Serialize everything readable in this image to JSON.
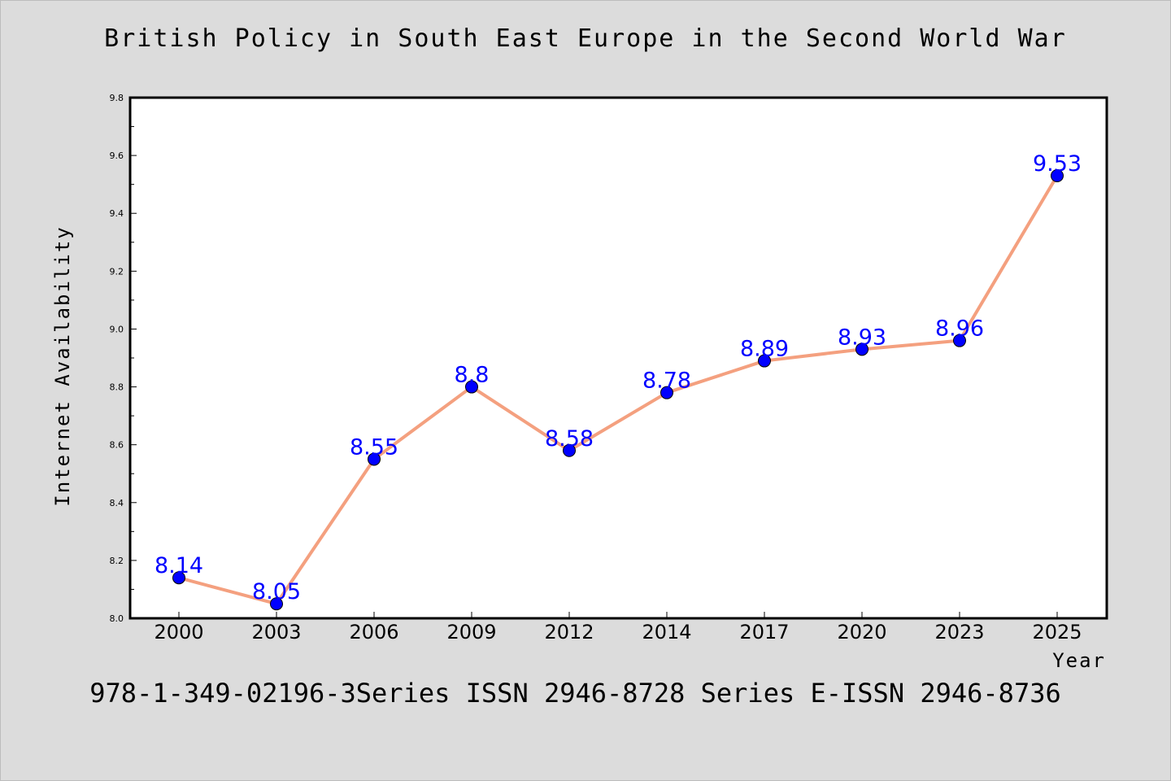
{
  "header": {
    "title": "British Policy in South East Europe in the Second World War"
  },
  "footer": {
    "text": "978-1-349-02196-3Series ISSN 2946-8728 Series E-ISSN 2946-8736"
  },
  "chart_data": {
    "type": "line",
    "title": "British Policy in South East Europe in the Second World War",
    "xlabel": "Year",
    "ylabel": "Internet Availability",
    "categories": [
      "2000",
      "2003",
      "2006",
      "2009",
      "2012",
      "2014",
      "2017",
      "2020",
      "2023",
      "2025"
    ],
    "series": [
      {
        "values": [
          8.14,
          8.05,
          8.55,
          8.8,
          8.58,
          8.78,
          8.89,
          8.93,
          8.96,
          9.53
        ],
        "data_labels": [
          "8.14",
          "8.05",
          "8.55",
          "8.8",
          "8.58",
          "8.78",
          "8.89",
          "8.93",
          "8.96",
          "9.53"
        ]
      }
    ],
    "ylim": [
      8.0,
      9.8
    ],
    "yticks": [
      "8.0",
      "8.2",
      "8.4",
      "8.6",
      "8.8",
      "9.0",
      "9.2",
      "9.4",
      "9.6",
      "9.8"
    ],
    "grid": false,
    "legend": "none",
    "colors": {
      "line": "#f4a07f",
      "marker": "#0000ff",
      "marker_edge": "#000000",
      "data_label": "#0000ff",
      "background": "#dcdcdc",
      "plot_background": "#ffffff"
    }
  }
}
